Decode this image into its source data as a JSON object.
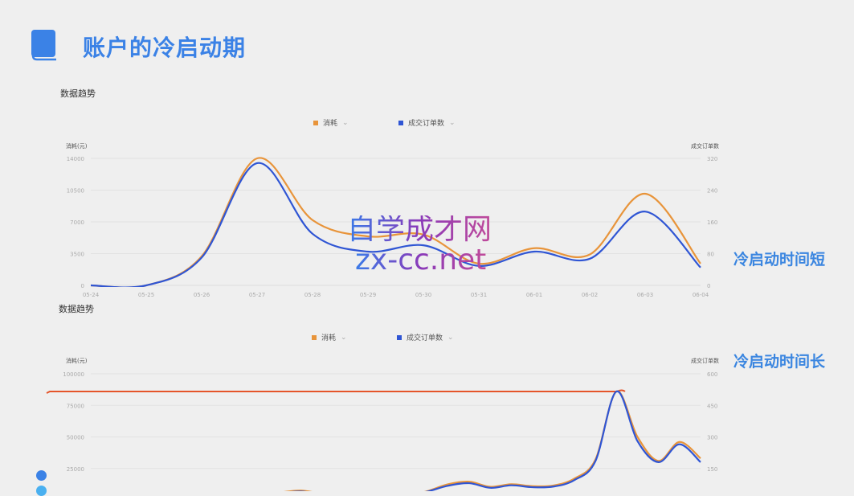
{
  "header": {
    "title": "账户的冷启动期",
    "icon": "book-icon",
    "accent": "#3b82e6"
  },
  "notes": {
    "short": "冷启动时间短",
    "long": "冷启动时间长"
  },
  "watermark": {
    "line1": "自学成才网",
    "line2": "zx-cc.net"
  },
  "chart_data": [
    {
      "type": "line",
      "section_title": "数据趋势",
      "legend": [
        {
          "label": "消耗",
          "color": "#e8943a"
        },
        {
          "label": "成交订单数",
          "color": "#2f55d4"
        }
      ],
      "ylabel_left": "消耗(元)",
      "ylabel_right": "成交订单数",
      "ylim_left": [
        0,
        14000
      ],
      "ylim_right": [
        0,
        320
      ],
      "yticks_left": [
        "0",
        "3500",
        "7000",
        "10500",
        "14000"
      ],
      "yticks_right": [
        "0",
        "80",
        "160",
        "240",
        "320"
      ],
      "categories": [
        "05-24",
        "05-25",
        "05-26",
        "05-27",
        "05-28",
        "05-29",
        "05-30",
        "05-31",
        "06-01",
        "06-02",
        "06-03",
        "06-04"
      ],
      "series": [
        {
          "name": "消耗",
          "axis": "left",
          "color": "#e8943a",
          "values": [
            0,
            0,
            3200,
            14000,
            7200,
            5400,
            5600,
            2400,
            4100,
            3400,
            10100,
            2400
          ]
        },
        {
          "name": "成交订单数",
          "axis": "right",
          "color": "#2f55d4",
          "values": [
            0,
            0,
            70,
            308,
            130,
            85,
            101,
            49,
            85,
            67,
            186,
            45
          ]
        }
      ],
      "grid": true,
      "legend_position": "top-center"
    },
    {
      "type": "line",
      "section_title": "数据趋势",
      "legend": [
        {
          "label": "消耗",
          "color": "#e8943a"
        },
        {
          "label": "成交订单数",
          "color": "#2f55d4"
        }
      ],
      "ylabel_left": "消耗(元)",
      "ylabel_right": "成交订单数",
      "ylim_left": [
        0,
        100000
      ],
      "ylim_right": [
        0,
        600
      ],
      "yticks_left": [
        "25000",
        "50000",
        "75000",
        "100000"
      ],
      "yticks_right": [
        "150",
        "300",
        "450",
        "600"
      ],
      "series": [
        {
          "name": "消耗",
          "axis": "left",
          "color": "#e8943a",
          "values": [
            0,
            0,
            0,
            0,
            0,
            0,
            2000,
            3000,
            4000,
            6000,
            7500,
            5000,
            4000,
            5000,
            4000,
            3000,
            7000,
            12500,
            14500,
            10500,
            12500,
            11000,
            11500,
            17000,
            32000,
            86000,
            50000,
            31000,
            46000,
            33000
          ]
        },
        {
          "name": "成交订单数",
          "axis": "right",
          "color": "#2f55d4",
          "values": [
            0,
            0,
            0,
            0,
            0,
            0,
            10,
            15,
            20,
            33,
            40,
            28,
            22,
            27,
            22,
            17,
            40,
            68,
            80,
            58,
            70,
            61,
            64,
            95,
            185,
            516,
            280,
            180,
            265,
            180
          ]
        }
      ],
      "annotation_line": {
        "color": "#e5552a",
        "value": 86000
      },
      "grid": true,
      "legend_position": "top-center"
    }
  ]
}
